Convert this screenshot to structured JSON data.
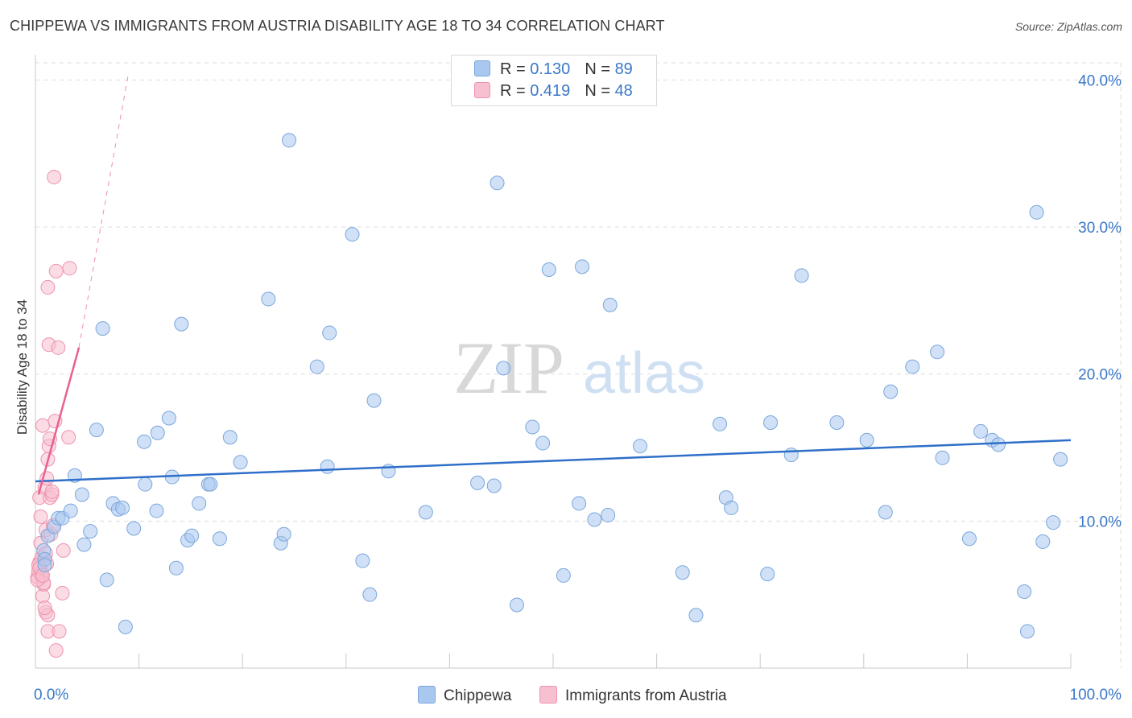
{
  "chart_data": {
    "type": "scatter",
    "title": "CHIPPEWA VS IMMIGRANTS FROM AUSTRIA DISABILITY AGE 18 TO 34 CORRELATION CHART",
    "source": "Source: ZipAtlas.com",
    "xlabel": "",
    "ylabel": "Disability Age 18 to 34",
    "xlim": [
      0,
      100
    ],
    "ylim": [
      0,
      41.5
    ],
    "x_tick_labels": {
      "left": "0.0%",
      "right": "100.0%"
    },
    "y_ticks": [
      10,
      20,
      30,
      40
    ],
    "y_tick_labels": [
      "10.0%",
      "20.0%",
      "30.0%",
      "40.0%"
    ],
    "watermark": {
      "zip": "ZIP",
      "atlas": "atlas"
    },
    "colors": {
      "blue_fill": "#a9c8f0",
      "blue_stroke": "#7aa6dc",
      "blue_line": "#2f6fc9",
      "pink_fill": "#f7c0d0",
      "pink_stroke": "#ee93ad",
      "pink_line": "#e8608f",
      "value_text": "#3a78c8",
      "grid": "#dddddd"
    },
    "legend": [
      {
        "r_label": "R = ",
        "r_value": "0.130",
        "n_label": "N = ",
        "n_value": "89"
      },
      {
        "r_label": "R = ",
        "r_value": "0.419",
        "n_label": "N = ",
        "n_value": "48"
      }
    ],
    "series": [
      {
        "name": "Chippewa",
        "color": "blue",
        "trend": {
          "x": [
            0,
            100
          ],
          "y": [
            12.7,
            15.5
          ],
          "dashed_extension": false
        },
        "points": [
          [
            0.8,
            8.0
          ],
          [
            0.9,
            7.4
          ],
          [
            0.9,
            7.0
          ],
          [
            1.2,
            9.0
          ],
          [
            1.8,
            9.6
          ],
          [
            2.2,
            10.2
          ],
          [
            2.6,
            10.2
          ],
          [
            3.4,
            10.7
          ],
          [
            3.8,
            13.1
          ],
          [
            4.5,
            11.8
          ],
          [
            4.7,
            8.4
          ],
          [
            5.3,
            9.3
          ],
          [
            5.9,
            16.2
          ],
          [
            6.5,
            23.1
          ],
          [
            6.9,
            6.0
          ],
          [
            7.5,
            11.2
          ],
          [
            8.0,
            10.8
          ],
          [
            8.4,
            10.9
          ],
          [
            8.7,
            2.8
          ],
          [
            9.5,
            9.5
          ],
          [
            10.5,
            15.4
          ],
          [
            10.6,
            12.5
          ],
          [
            11.7,
            10.7
          ],
          [
            11.8,
            16.0
          ],
          [
            12.9,
            17.0
          ],
          [
            13.2,
            13.0
          ],
          [
            13.6,
            6.8
          ],
          [
            14.1,
            23.4
          ],
          [
            14.7,
            8.7
          ],
          [
            15.1,
            9.0
          ],
          [
            15.8,
            11.2
          ],
          [
            16.7,
            12.5
          ],
          [
            16.9,
            12.5
          ],
          [
            17.8,
            8.8
          ],
          [
            18.8,
            15.7
          ],
          [
            19.8,
            14.0
          ],
          [
            22.5,
            25.1
          ],
          [
            23.7,
            8.5
          ],
          [
            24.0,
            9.1
          ],
          [
            24.5,
            35.9
          ],
          [
            27.2,
            20.5
          ],
          [
            28.2,
            13.7
          ],
          [
            28.4,
            22.8
          ],
          [
            30.6,
            29.5
          ],
          [
            31.6,
            7.3
          ],
          [
            32.3,
            5.0
          ],
          [
            32.7,
            18.2
          ],
          [
            34.1,
            13.4
          ],
          [
            37.7,
            10.6
          ],
          [
            42.7,
            12.6
          ],
          [
            44.3,
            12.4
          ],
          [
            44.6,
            33.0
          ],
          [
            45.2,
            20.4
          ],
          [
            46.5,
            4.3
          ],
          [
            48.0,
            16.4
          ],
          [
            49.0,
            15.3
          ],
          [
            49.6,
            27.1
          ],
          [
            51.0,
            6.3
          ],
          [
            52.5,
            11.2
          ],
          [
            52.8,
            27.3
          ],
          [
            54.0,
            10.1
          ],
          [
            55.3,
            10.4
          ],
          [
            55.5,
            24.7
          ],
          [
            58.4,
            15.1
          ],
          [
            62.5,
            6.5
          ],
          [
            63.8,
            3.6
          ],
          [
            66.1,
            16.6
          ],
          [
            66.7,
            11.6
          ],
          [
            67.2,
            10.9
          ],
          [
            70.7,
            6.4
          ],
          [
            71.0,
            16.7
          ],
          [
            73.0,
            14.5
          ],
          [
            74.0,
            26.7
          ],
          [
            77.4,
            16.7
          ],
          [
            80.3,
            15.5
          ],
          [
            82.1,
            10.6
          ],
          [
            82.6,
            18.8
          ],
          [
            84.7,
            20.5
          ],
          [
            87.1,
            21.5
          ],
          [
            87.6,
            14.3
          ],
          [
            90.2,
            8.8
          ],
          [
            91.3,
            16.1
          ],
          [
            92.4,
            15.5
          ],
          [
            93.0,
            15.2
          ],
          [
            95.5,
            5.2
          ],
          [
            95.8,
            2.5
          ],
          [
            96.7,
            31.0
          ],
          [
            97.3,
            8.6
          ],
          [
            98.3,
            9.9
          ],
          [
            99.0,
            14.2
          ]
        ]
      },
      {
        "name": "Immigrants from Austria",
        "color": "pink",
        "trend": {
          "x": [
            0.3,
            4.2
          ],
          "y": [
            11.8,
            21.8
          ],
          "dashed_extension": true,
          "dash_to": [
            9.0,
            40.5
          ]
        },
        "points": [
          [
            0.2,
            6.2
          ],
          [
            0.3,
            6.6
          ],
          [
            0.4,
            7.2
          ],
          [
            0.4,
            11.6
          ],
          [
            0.5,
            10.3
          ],
          [
            0.5,
            8.5
          ],
          [
            0.5,
            6.9
          ],
          [
            0.6,
            6.2
          ],
          [
            0.6,
            7.5
          ],
          [
            0.7,
            4.9
          ],
          [
            0.7,
            16.5
          ],
          [
            0.8,
            5.7
          ],
          [
            0.9,
            7.4
          ],
          [
            0.9,
            12.3
          ],
          [
            1.0,
            3.8
          ],
          [
            1.0,
            9.4
          ],
          [
            1.0,
            7.8
          ],
          [
            1.1,
            12.9
          ],
          [
            1.2,
            25.9
          ],
          [
            1.2,
            3.6
          ],
          [
            1.2,
            14.2
          ],
          [
            1.2,
            2.5
          ],
          [
            1.3,
            15.1
          ],
          [
            1.3,
            22.0
          ],
          [
            1.4,
            15.6
          ],
          [
            1.4,
            11.6
          ],
          [
            1.5,
            9.1
          ],
          [
            1.6,
            11.8
          ],
          [
            1.6,
            12.0
          ],
          [
            1.7,
            9.7
          ],
          [
            1.8,
            33.4
          ],
          [
            1.9,
            16.8
          ],
          [
            2.0,
            27.0
          ],
          [
            2.0,
            1.2
          ],
          [
            2.2,
            21.8
          ],
          [
            2.3,
            2.5
          ],
          [
            2.6,
            5.1
          ],
          [
            2.7,
            8.0
          ],
          [
            3.2,
            15.7
          ],
          [
            3.3,
            27.2
          ],
          [
            0.3,
            7.0
          ],
          [
            0.6,
            6.4
          ],
          [
            0.8,
            5.8
          ],
          [
            1.1,
            7.1
          ],
          [
            0.4,
            6.8
          ],
          [
            0.9,
            4.1
          ],
          [
            0.2,
            6.0
          ],
          [
            0.7,
            6.3
          ]
        ]
      }
    ]
  }
}
